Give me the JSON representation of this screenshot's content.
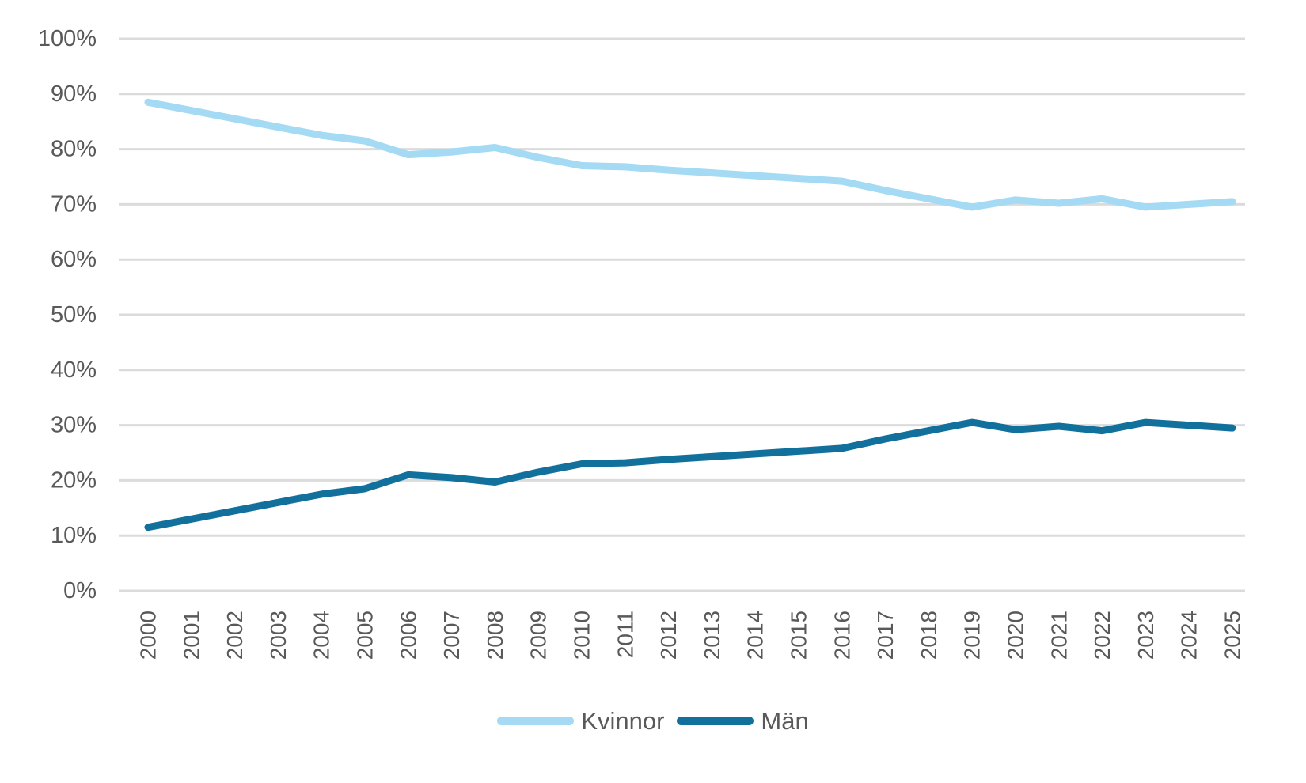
{
  "chart_data": {
    "type": "line",
    "title": "",
    "xlabel": "",
    "ylabel": "",
    "x": [
      "2000",
      "2001",
      "2002",
      "2003",
      "2004",
      "2005",
      "2006",
      "2007",
      "2008",
      "2009",
      "2010",
      "2011",
      "2012",
      "2013",
      "2014",
      "2015",
      "2016",
      "2017",
      "2018",
      "2019",
      "2020",
      "2021",
      "2022",
      "2023",
      "2024",
      "2025"
    ],
    "series": [
      {
        "name": "Kvinnor",
        "color": "#A4DAF3",
        "values": [
          88.5,
          87.0,
          85.5,
          84.0,
          82.5,
          81.5,
          79.0,
          79.5,
          80.3,
          78.5,
          77.0,
          76.8,
          76.2,
          75.7,
          75.2,
          74.7,
          74.2,
          72.5,
          71.0,
          69.5,
          70.8,
          70.2,
          71.0,
          69.5,
          70.0,
          70.5
        ]
      },
      {
        "name": "Män",
        "color": "#11709C",
        "values": [
          11.5,
          13.0,
          14.5,
          16.0,
          17.5,
          18.5,
          21.0,
          20.5,
          19.7,
          21.5,
          23.0,
          23.2,
          23.8,
          24.3,
          24.8,
          25.3,
          25.8,
          27.5,
          29.0,
          30.5,
          29.2,
          29.8,
          29.0,
          30.5,
          30.0,
          29.5
        ]
      }
    ],
    "ylim": [
      0,
      100
    ],
    "y_tick_step": 10,
    "y_tick_labels": [
      "0%",
      "10%",
      "20%",
      "30%",
      "40%",
      "50%",
      "60%",
      "70%",
      "80%",
      "90%",
      "100%"
    ],
    "grid": true,
    "gridline_color": "#DBDBDB",
    "axis_label_color": "#595959",
    "legend_position": "bottom-center"
  }
}
